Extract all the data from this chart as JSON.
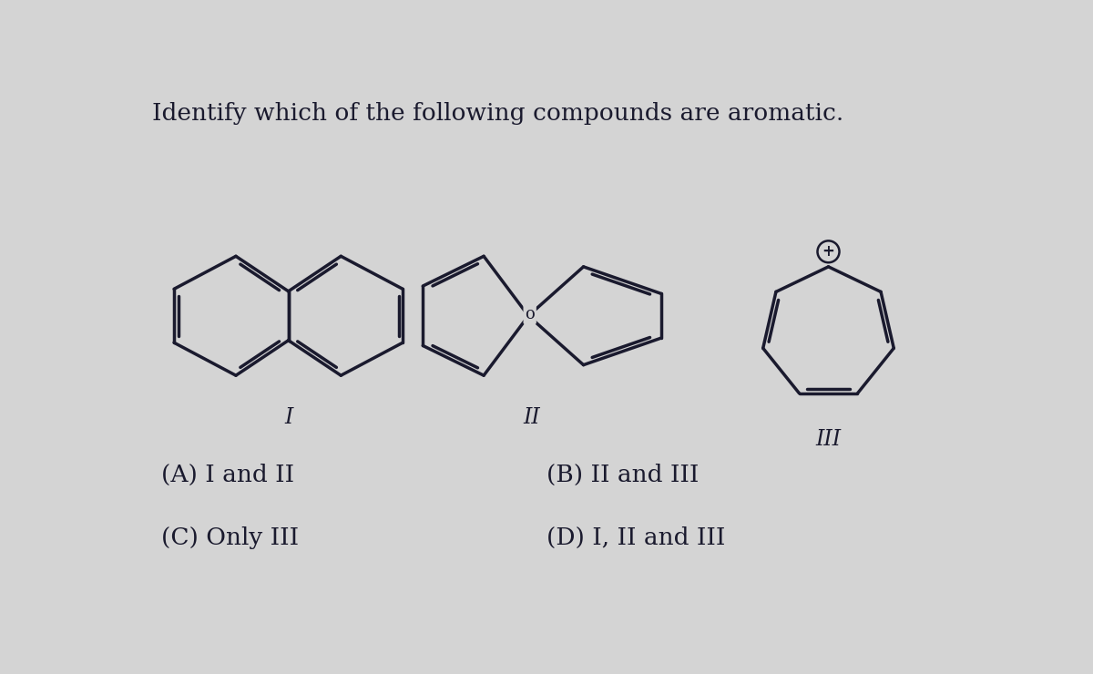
{
  "title": "Identify which of the following compounds are aromatic.",
  "title_fontsize": 19,
  "bg_color": "#d4d4d4",
  "line_color": "#1a1a2e",
  "line_width": 2.5,
  "dbo": 0.06,
  "shrink": 0.13,
  "answer_A": "(A) I and II",
  "answer_B": "(B) II and III",
  "answer_C": "(C) Only III",
  "answer_D": "(D) I, II and III",
  "label_I": "I",
  "label_II": "II",
  "label_III": "III"
}
